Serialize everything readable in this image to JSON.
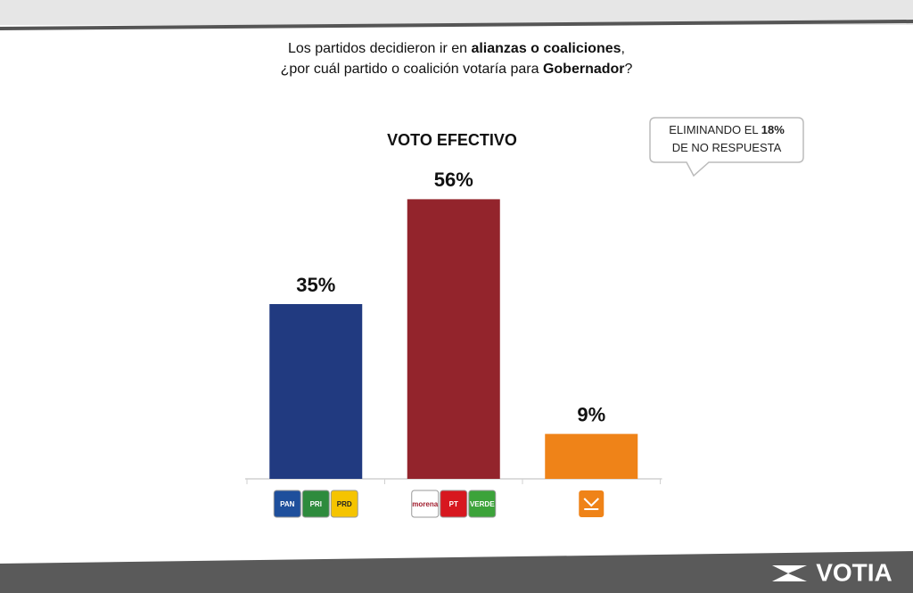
{
  "question": {
    "lines": [
      [
        {
          "text": "Los partidos decidieron ir en ",
          "bold": false
        },
        {
          "text": "alianzas o coaliciones",
          "bold": true
        },
        {
          "text": ",",
          "bold": false
        }
      ],
      [
        {
          "text": "¿por cuál partido o coalición votaría para ",
          "bold": false
        },
        {
          "text": "Gobernador",
          "bold": true
        },
        {
          "text": "?",
          "bold": false
        }
      ]
    ]
  },
  "callout": {
    "lines": [
      [
        {
          "text": "ELIMINANDO EL ",
          "bold": false
        },
        {
          "text": "18%",
          "bold": true
        }
      ],
      [
        {
          "text": "DE NO RESPUESTA",
          "bold": false
        }
      ]
    ]
  },
  "brand": "VOTIA",
  "chart_data": {
    "type": "bar",
    "title": "VOTO EFECTIVO",
    "categories": [
      null,
      null,
      null
    ],
    "category_logos": [
      [
        "PAN",
        "PRI",
        "PRD"
      ],
      [
        "morena",
        "PT",
        "VERDE"
      ],
      null
    ],
    "values": [
      35,
      56,
      9
    ],
    "value_labels": [
      "35%",
      "56%",
      "9%"
    ],
    "colors": [
      "#213a80",
      "#93242c",
      "#ef8318"
    ],
    "ylim": [
      0,
      60
    ]
  }
}
